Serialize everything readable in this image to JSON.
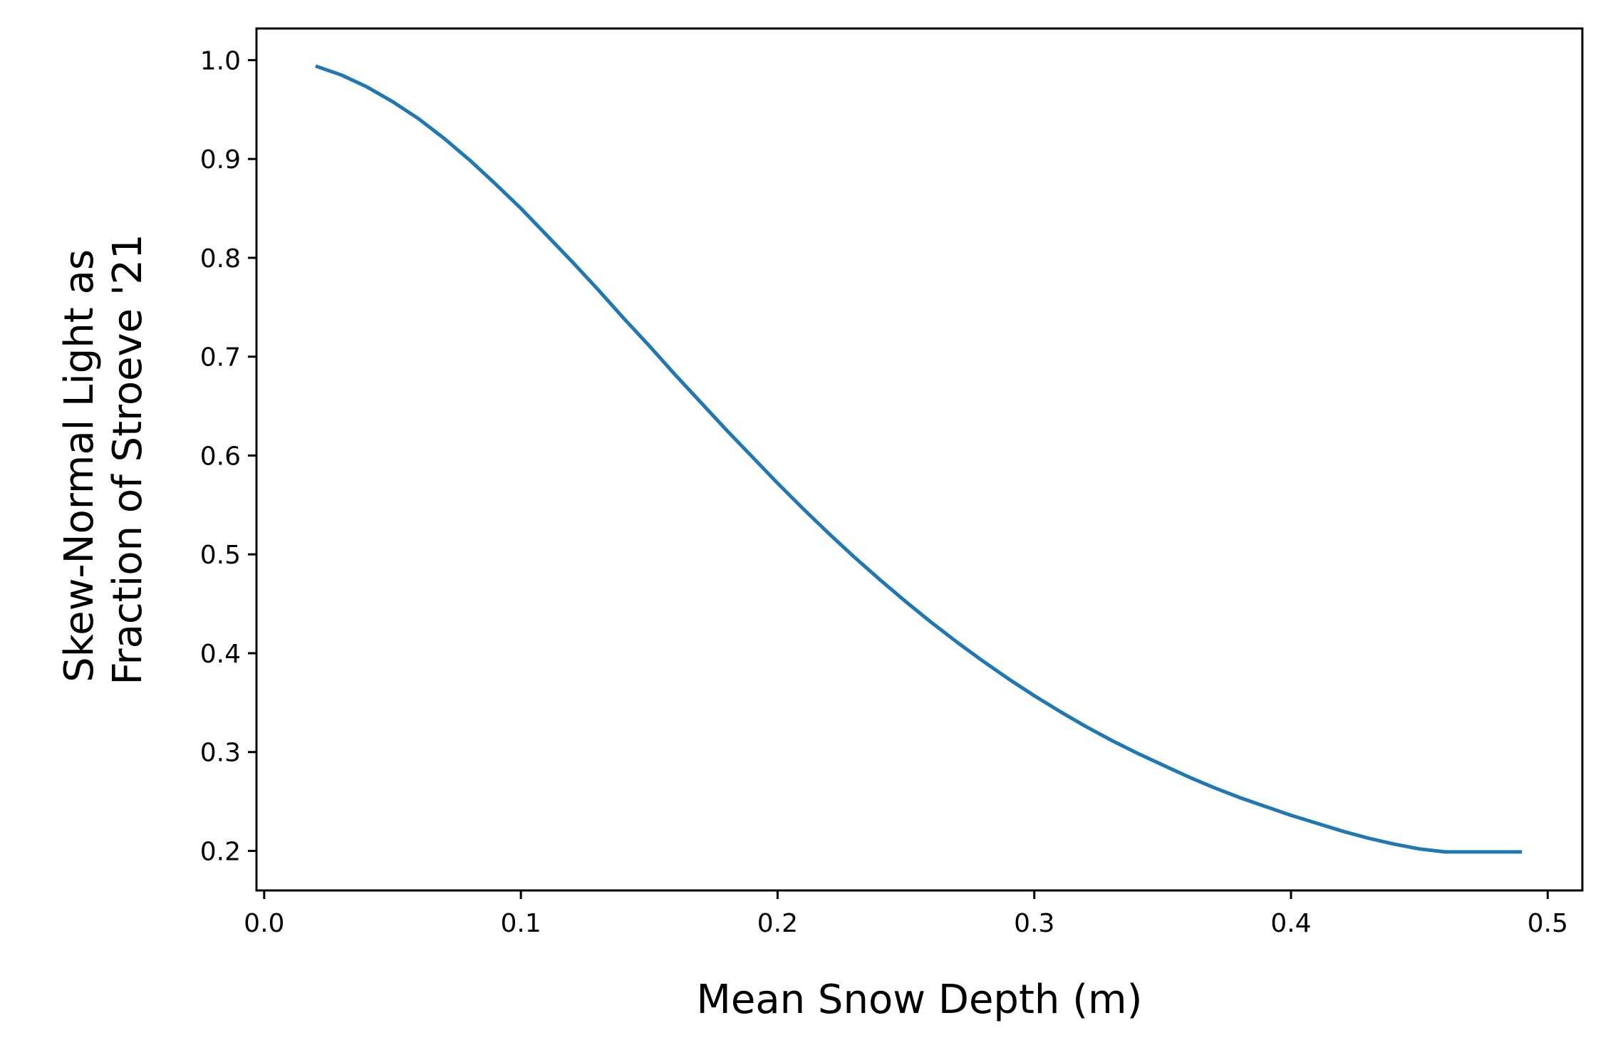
{
  "chart_data": {
    "type": "line",
    "title": "",
    "xlabel": "Mean Snow Depth (m)",
    "ylabel_lines": [
      "Skew-Normal Light as",
      "Fraction of Stroeve '21"
    ],
    "xlim": [
      -0.003,
      0.5135
    ],
    "ylim": [
      0.16,
      1.032
    ],
    "xticks": [
      0.0,
      0.1,
      0.2,
      0.3,
      0.4,
      0.5
    ],
    "xtick_labels": [
      "0.0",
      "0.1",
      "0.2",
      "0.3",
      "0.4",
      "0.5"
    ],
    "yticks": [
      0.2,
      0.3,
      0.4,
      0.5,
      0.6,
      0.7,
      0.8,
      0.9,
      1.0
    ],
    "ytick_labels": [
      "0.2",
      "0.3",
      "0.4",
      "0.5",
      "0.6",
      "0.7",
      "0.8",
      "0.9",
      "1.0"
    ],
    "grid": false,
    "series": [
      {
        "color": "#1f77b4",
        "x": [
          0.02,
          0.03,
          0.04,
          0.05,
          0.06,
          0.07,
          0.08,
          0.09,
          0.1,
          0.11,
          0.12,
          0.13,
          0.14,
          0.15,
          0.16,
          0.17,
          0.18,
          0.19,
          0.2,
          0.21,
          0.22,
          0.23,
          0.24,
          0.25,
          0.26,
          0.27,
          0.28,
          0.29,
          0.3,
          0.31,
          0.32,
          0.33,
          0.34,
          0.35,
          0.36,
          0.37,
          0.38,
          0.39,
          0.4,
          0.41,
          0.42,
          0.43,
          0.44,
          0.45,
          0.46,
          0.47,
          0.48,
          0.49
        ],
        "y": [
          0.994,
          0.985,
          0.973,
          0.958,
          0.941,
          0.921,
          0.899,
          0.875,
          0.85,
          0.823,
          0.796,
          0.768,
          0.739,
          0.711,
          0.682,
          0.654,
          0.626,
          0.599,
          0.572,
          0.546,
          0.521,
          0.497,
          0.474,
          0.452,
          0.431,
          0.411,
          0.392,
          0.374,
          0.357,
          0.341,
          0.326,
          0.312,
          0.299,
          0.287,
          0.275,
          0.264,
          0.254,
          0.245,
          0.236,
          0.228,
          0.22,
          0.213,
          0.207,
          0.202,
          0.199,
          0.199,
          0.199,
          0.199
        ]
      }
    ]
  }
}
